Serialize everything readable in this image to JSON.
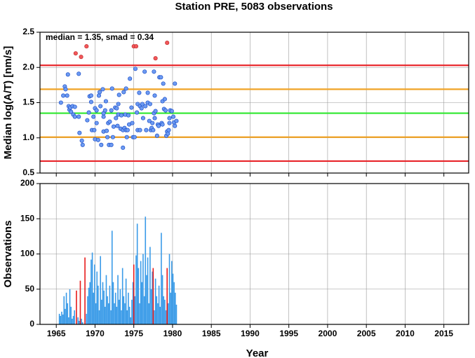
{
  "chart_data": [
    {
      "type": "scatter",
      "title": "Station PRE, 5083 observations",
      "ylabel": "Median log(A/T) [nm/s]",
      "annotation": "median = 1.35, smad = 0.34",
      "xlim": [
        1962.9,
        2018.2
      ],
      "xticks": [
        1965,
        1970,
        1975,
        1980,
        1985,
        1990,
        1995,
        2000,
        2005,
        2010,
        2015
      ],
      "ylim": [
        0.5,
        2.5
      ],
      "yticks": [
        0.5,
        {
          "value": 1.0,
          "label": "1.0"
        },
        1.5,
        {
          "value": 2.0,
          "label": "2.0"
        },
        2.5
      ],
      "grid": true,
      "hlines": [
        {
          "value": 2.03,
          "color": "#e8262b"
        },
        {
          "value": 1.69,
          "color": "#f0a326"
        },
        {
          "value": 1.35,
          "color": "#2ee82e"
        },
        {
          "value": 1.01,
          "color": "#f0a326"
        },
        {
          "value": 0.67,
          "color": "#e8262b"
        }
      ],
      "series": [
        {
          "color": "#6d9bf2",
          "x": [
            1965.6,
            1965.9,
            1966.1,
            1966.2,
            1966.4,
            1966.5,
            1966.6,
            1966.7,
            1966.8,
            1966.9,
            1967.1,
            1967.2,
            1967.4,
            1967.4,
            1967.9,
            1967.9,
            1968.0,
            1968.3,
            1968.4,
            1969.0,
            1969.2,
            1969.3,
            1969.5,
            1969.5,
            1969.6,
            1969.8,
            1969.9,
            1970.0,
            1970.0,
            1970.2,
            1970.2,
            1970.4,
            1970.5,
            1970.6,
            1970.7,
            1970.8,
            1971.0,
            1971.1,
            1971.1,
            1971.1,
            1971.3,
            1971.4,
            1971.5,
            1971.6,
            1971.7,
            1971.8,
            1971.9,
            1972.1,
            1972.1,
            1972.2,
            1972.3,
            1972.4,
            1972.6,
            1972.7,
            1972.8,
            1972.9,
            1973.0,
            1973.0,
            1973.1,
            1973.3,
            1973.4,
            1973.6,
            1973.6,
            1973.7,
            1973.8,
            1973.9,
            1974.0,
            1974.0,
            1974.1,
            1974.2,
            1974.3,
            1974.4,
            1974.5,
            1974.7,
            1974.8,
            1974.9,
            1975.1,
            1975.2,
            1975.4,
            1975.5,
            1975.5,
            1975.7,
            1975.8,
            1975.8,
            1976.0,
            1976.1,
            1976.2,
            1976.4,
            1976.5,
            1976.6,
            1976.8,
            1976.8,
            1977.0,
            1977.1,
            1977.2,
            1977.3,
            1977.4,
            1977.5,
            1977.6,
            1977.6,
            1977.7,
            1977.7,
            1977.8,
            1978.0,
            1978.1,
            1978.2,
            1978.3,
            1978.5,
            1978.6,
            1978.7,
            1978.7,
            1978.8,
            1978.9,
            1979.0,
            1979.1,
            1979.2,
            1979.3,
            1979.4,
            1979.5,
            1979.6,
            1979.6,
            1979.7,
            1979.9,
            1980.1,
            1980.2,
            1980.3,
            1980.3,
            1980.5
          ],
          "values": [
            1.5,
            1.6,
            1.73,
            1.69,
            1.6,
            1.9,
            1.45,
            1.4,
            1.43,
            1.37,
            1.45,
            1.33,
            1.3,
            1.44,
            1.91,
            1.3,
            1.07,
            0.96,
            0.9,
            1.25,
            1.36,
            1.59,
            1.6,
            1.51,
            1.11,
            1.3,
            1.11,
            0.98,
            1.42,
            1.21,
            1.39,
            0.97,
            1.6,
            1.65,
            1.45,
            0.9,
            1.69,
            1.3,
            1.35,
            1.09,
            1.39,
            1.52,
            1.1,
            1.01,
            1.21,
            0.9,
            1.23,
            0.9,
            1.39,
            1.7,
            1.01,
            1.16,
            1.43,
            1.28,
            1.42,
            1.17,
            1.33,
            1.48,
            1.61,
            1.13,
            1.32,
            0.86,
            1.11,
            1.65,
            1.14,
            1.33,
            1.11,
            1.7,
            1.01,
            1.11,
            1.32,
            1.19,
            1.84,
            1.43,
            1.21,
            1.01,
            1.01,
            1.98,
            1.36,
            1.48,
            1.11,
            1.64,
            1.45,
            1.11,
            1.42,
            1.48,
            1.28,
            1.94,
            1.45,
            1.11,
            1.5,
            1.64,
            1.24,
            1.48,
            1.11,
            1.14,
            1.21,
            1.11,
            1.35,
            1.94,
            1.6,
            1.28,
            1.38,
            1.03,
            1.19,
            1.17,
            1.86,
            1.86,
            1.21,
            1.52,
            1.19,
            1.77,
            1.41,
            1.55,
            1.39,
            1.03,
            1.09,
            1.06,
            1.11,
            1.21,
            1.28,
            1.39,
            1.38,
            1.3,
            1.22,
            1.77,
            1.17,
            1.24
          ]
        },
        {
          "color": "#f2575a",
          "x": [
            1967.5,
            1968.2,
            1968.9,
            1975.0,
            1975.3,
            1977.8,
            1979.3
          ],
          "values": [
            2.2,
            2.15,
            2.3,
            2.3,
            2.3,
            2.13,
            2.35
          ]
        }
      ]
    },
    {
      "type": "bar",
      "xlabel": "Year",
      "ylabel": "Observations",
      "xlim": [
        1962.9,
        2018.2
      ],
      "xticks": [
        1965,
        1970,
        1975,
        1980,
        1985,
        1990,
        1995,
        2000,
        2005,
        2010,
        2015
      ],
      "ylim": [
        0,
        200
      ],
      "yticks": [
        0,
        50,
        100,
        150,
        200
      ],
      "grid": true,
      "series": [
        {
          "color": "#3a9be8",
          "x": [
            1965.4,
            1965.55,
            1965.7,
            1965.85,
            1966.0,
            1966.15,
            1966.3,
            1966.45,
            1966.6,
            1966.75,
            1966.9,
            1967.05,
            1967.2,
            1967.35,
            1967.8,
            1967.95,
            1968.25,
            1968.4,
            1968.9,
            1969.05,
            1969.2,
            1969.35,
            1969.5,
            1969.65,
            1969.8,
            1969.95,
            1970.1,
            1970.25,
            1970.4,
            1970.55,
            1970.7,
            1970.85,
            1971.0,
            1971.15,
            1971.3,
            1971.45,
            1971.6,
            1971.75,
            1971.9,
            1972.05,
            1972.2,
            1972.35,
            1972.5,
            1972.65,
            1972.8,
            1972.95,
            1973.1,
            1973.25,
            1973.4,
            1973.55,
            1973.7,
            1973.85,
            1974.0,
            1974.15,
            1974.3,
            1974.45,
            1974.6,
            1974.75,
            1974.9,
            1975.15,
            1975.3,
            1975.45,
            1975.6,
            1975.75,
            1975.9,
            1976.05,
            1976.2,
            1976.35,
            1976.5,
            1976.65,
            1976.8,
            1976.95,
            1977.1,
            1977.25,
            1977.4,
            1977.65,
            1977.8,
            1977.95,
            1978.1,
            1978.25,
            1978.4,
            1978.55,
            1978.7,
            1978.85,
            1979.0,
            1979.15,
            1979.45,
            1979.6,
            1979.75,
            1979.9,
            1980.05,
            1980.2,
            1980.35,
            1980.5
          ],
          "values": [
            15,
            12,
            18,
            14,
            40,
            22,
            45,
            30,
            10,
            50,
            25,
            8,
            12,
            20,
            10,
            5,
            8,
            3,
            15,
            40,
            52,
            60,
            92,
            102,
            45,
            85,
            30,
            75,
            55,
            20,
            97,
            35,
            60,
            48,
            25,
            70,
            40,
            30,
            55,
            20,
            133,
            60,
            30,
            45,
            25,
            70,
            35,
            50,
            20,
            80,
            40,
            30,
            65,
            20,
            45,
            25,
            10,
            35,
            60,
            40,
            98,
            143,
            80,
            30,
            90,
            60,
            100,
            40,
            153,
            70,
            95,
            30,
            110,
            50,
            75,
            20,
            65,
            40,
            30,
            55,
            25,
            130,
            70,
            40,
            35,
            20,
            30,
            100,
            45,
            90,
            72,
            60,
            45,
            28
          ]
        },
        {
          "color": "#e81b1b",
          "x": [
            1967.6,
            1968.1,
            1968.7,
            1975.0,
            1977.5,
            1979.3
          ],
          "values": [
            48,
            62,
            95,
            85,
            80,
            80
          ]
        }
      ]
    }
  ]
}
